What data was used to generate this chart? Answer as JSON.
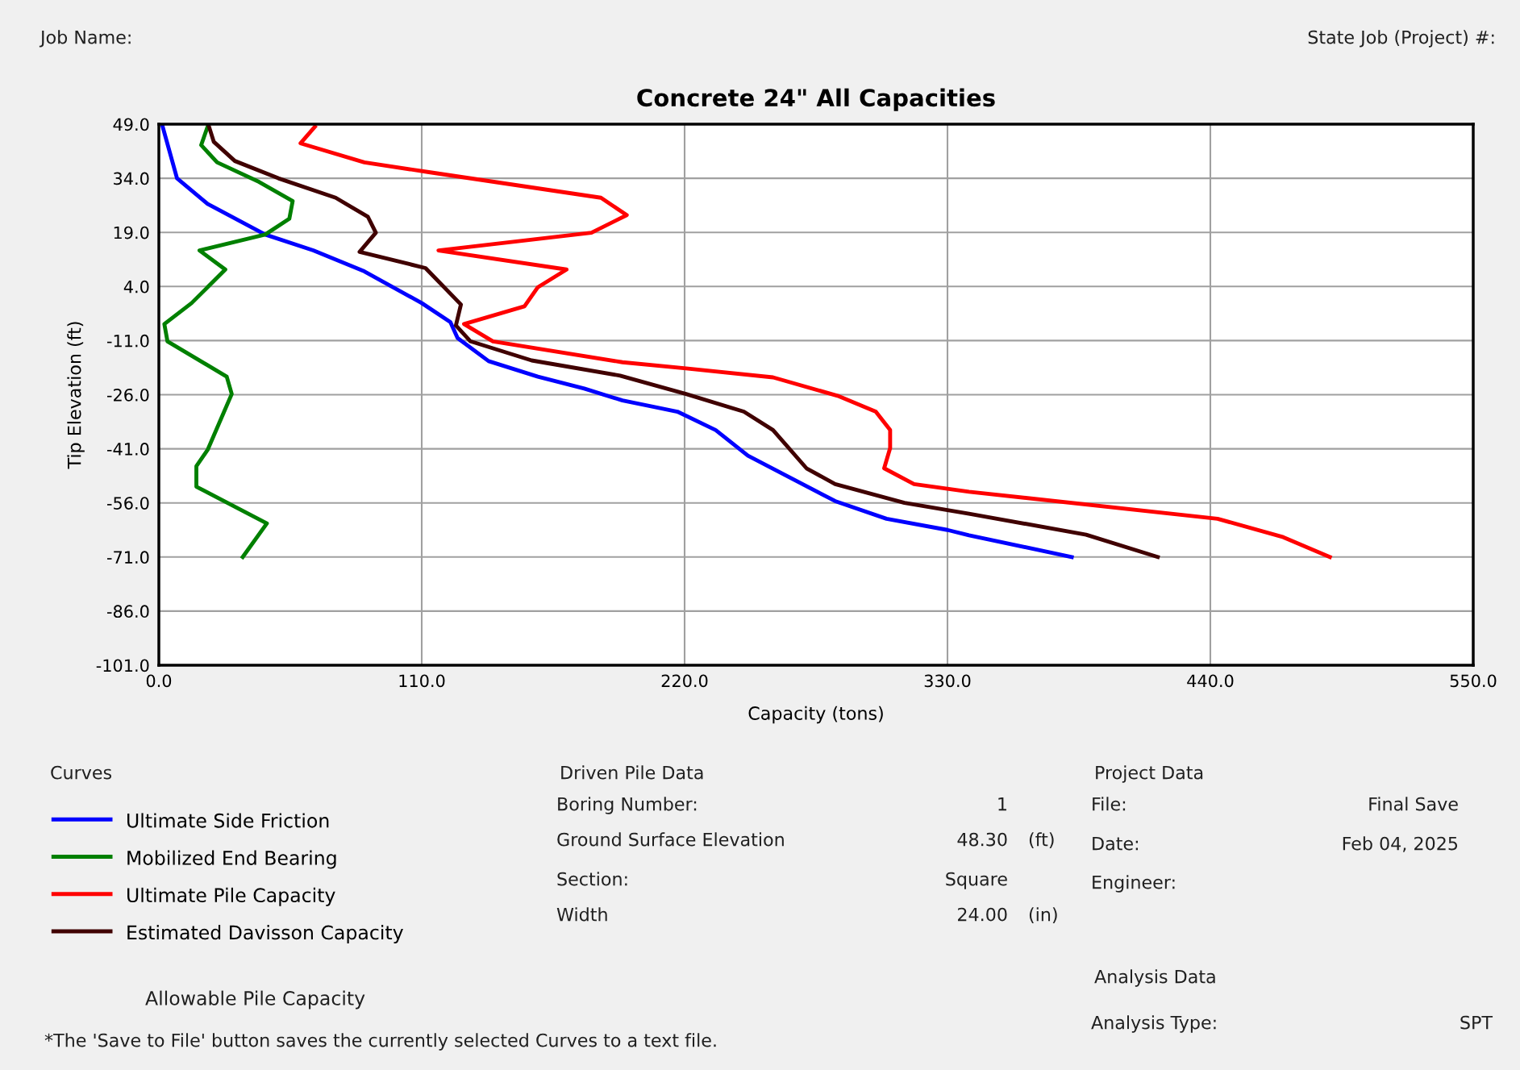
{
  "chart_data": {
    "type": "line",
    "title": "Concrete 24\" All Capacities",
    "xlabel": "Capacity (tons)",
    "ylabel": "Tip Elevation (ft)",
    "xlim": [
      0,
      550
    ],
    "ylim": [
      -101,
      49
    ],
    "xticks": [
      {
        "value": 0,
        "label": "0.0"
      },
      {
        "value": 110,
        "label": "110.0"
      },
      {
        "value": 220,
        "label": "220.0"
      },
      {
        "value": 330,
        "label": "330.0"
      },
      {
        "value": 440,
        "label": "440.0"
      },
      {
        "value": 550,
        "label": "550.0"
      }
    ],
    "yticks": [
      {
        "value": 49,
        "label": "49.0"
      },
      {
        "value": 34,
        "label": "34.0"
      },
      {
        "value": 19,
        "label": "19.0"
      },
      {
        "value": 4,
        "label": "4.0"
      },
      {
        "value": -11,
        "label": "-11.0"
      },
      {
        "value": -26,
        "label": "-26.0"
      },
      {
        "value": -41,
        "label": "-41.0"
      },
      {
        "value": -56,
        "label": "-56.0"
      },
      {
        "value": -71,
        "label": "-71.0"
      },
      {
        "value": -86,
        "label": "-86.0"
      },
      {
        "value": -101,
        "label": "-101.0"
      }
    ],
    "grid": true,
    "legend": "bottom left",
    "marker": "none",
    "line_style": "solid",
    "series": [
      {
        "name": "Ultimate Side Friction",
        "color": "#0000ff",
        "x": [
          1.6,
          7.6,
          20.4,
          44.5,
          64.6,
          86,
          110,
          122,
          125,
          138,
          158.6,
          178,
          194,
          217,
          233,
          246.5,
          283,
          304.5,
          330,
          339,
          382
        ],
        "values": [
          48.3,
          34,
          26.9,
          18.4,
          14,
          8.2,
          -0.6,
          -5.9,
          -10.3,
          -16.7,
          -21,
          -24.3,
          -27.6,
          -30.7,
          -35.8,
          -42.9,
          -55.5,
          -60.4,
          -63.5,
          -65,
          -71
        ]
      },
      {
        "name": "Mobilized End Bearing",
        "color": "#008000",
        "x": [
          20.4,
          17.7,
          24.4,
          41.9,
          56,
          54.6,
          44.5,
          17,
          27.8,
          13.7,
          2.3,
          3.6,
          28.4,
          30.5,
          20.4,
          15.7,
          15.7,
          45.2,
          35.1
        ],
        "values": [
          48.3,
          43.2,
          38.4,
          33,
          27.7,
          22.8,
          18.4,
          14,
          8.7,
          -0.6,
          -6.4,
          -11.2,
          -21,
          -25.8,
          -41.3,
          -45.8,
          -51.5,
          -61.7,
          -71
        ]
      },
      {
        "name": "Ultimate Pile Capacity",
        "color": "#ff0000",
        "x": [
          65.3,
          59.3,
          86,
          113,
          185,
          195.8,
          181,
          117,
          170.6,
          158.6,
          153,
          127.7,
          139.8,
          194,
          220.6,
          257,
          284,
          300,
          306,
          306,
          303.5,
          316,
          339,
          443,
          470.5,
          490
        ],
        "values": [
          48.3,
          43.7,
          38.4,
          35.7,
          28.6,
          23.8,
          18.9,
          14,
          8.7,
          3.8,
          -1.5,
          -6.4,
          -11.2,
          -17,
          -18.7,
          -21.2,
          -26.3,
          -30.7,
          -35.8,
          -40.8,
          -46.4,
          -50.8,
          -52.9,
          -60.4,
          -65.5,
          -71
        ]
      },
      {
        "name": "Estimated Davisson Capacity",
        "color": "#400000",
        "x": [
          21,
          23,
          31.8,
          50,
          74,
          87.5,
          90.8,
          84,
          111.6,
          126.4,
          124.3,
          130.4,
          156,
          193,
          220.6,
          244.8,
          257,
          271,
          283,
          312,
          339,
          388,
          418
        ],
        "values": [
          48.3,
          44.1,
          38.8,
          34,
          28.6,
          23.3,
          18.9,
          13.6,
          9.1,
          -1,
          -6.8,
          -11.2,
          -16.5,
          -20.7,
          -25.8,
          -30.7,
          -35.8,
          -46.4,
          -50.8,
          -56,
          -59,
          -64.8,
          -71
        ]
      }
    ],
    "annotations": [
      "Job Name:",
      "State Job (Project) #:",
      "Curves",
      "Allowable Pile Capacity",
      "*The 'Save to File' button saves the currently selected Curves to a text file.",
      "Driven Pile Data",
      "Boring Number:",
      "1",
      "Ground Surface Elevation",
      "48.30",
      "(ft)",
      "Section:",
      "Square",
      "Width",
      "24.00",
      "(in)",
      "Project Data",
      "File:",
      "Final Save",
      "Date:",
      "Feb 04, 2025",
      "Engineer:",
      "Analysis Data",
      "Analysis Type:",
      "SPT"
    ]
  }
}
